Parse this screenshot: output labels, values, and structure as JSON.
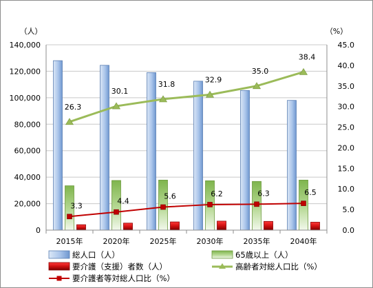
{
  "chart_data": {
    "type": "bar",
    "categories": [
      "2015年",
      "2020年",
      "2025年",
      "2030年",
      "2035年",
      "2040年"
    ],
    "y_left": {
      "unit": "（人）",
      "min": 0,
      "max": 140000,
      "step": 20000,
      "ticks": [
        "0",
        "20,000",
        "40,000",
        "60,000",
        "80,000",
        "100,000",
        "120,000",
        "140,000"
      ]
    },
    "y_right": {
      "unit": "（%）",
      "min": 0,
      "max": 45,
      "step": 5,
      "ticks": [
        "0.0",
        "5.0",
        "10.0",
        "15.0",
        "20.0",
        "25.0",
        "30.0",
        "35.0",
        "40.0",
        "45.0"
      ]
    },
    "grid": true,
    "legend_position": "bottom",
    "series": [
      {
        "name": "総人口（人）",
        "kind": "bar",
        "axis": "left",
        "color": "#8eb4e3",
        "values": [
          128000,
          124500,
          119000,
          112500,
          105500,
          98000
        ]
      },
      {
        "name": "65歳以上（人）",
        "kind": "bar",
        "axis": "left",
        "color": "#9bcb6a",
        "values": [
          33500,
          37500,
          37800,
          37300,
          36800,
          37800
        ]
      },
      {
        "name": "要介護（支援）者数（人）",
        "kind": "bar",
        "axis": "left",
        "color": "#e02020",
        "values": [
          4100,
          5300,
          6200,
          6800,
          6600,
          6000
        ]
      },
      {
        "name": "高齢者対総人口比（%）",
        "kind": "line",
        "axis": "right",
        "color": "#9bbb59",
        "values": [
          26.3,
          30.1,
          31.8,
          32.9,
          35.0,
          38.4
        ],
        "labels": [
          "26.3",
          "30.1",
          "31.8",
          "32.9",
          "35.0",
          "38.4"
        ]
      },
      {
        "name": "要介護者等対総人口比（%）",
        "kind": "line",
        "axis": "right",
        "color": "#c00000",
        "values": [
          3.3,
          4.4,
          5.6,
          6.2,
          6.3,
          6.5
        ],
        "labels": [
          "3.3",
          "4.4",
          "5.6",
          "6.2",
          "6.3",
          "6.5"
        ]
      }
    ]
  }
}
